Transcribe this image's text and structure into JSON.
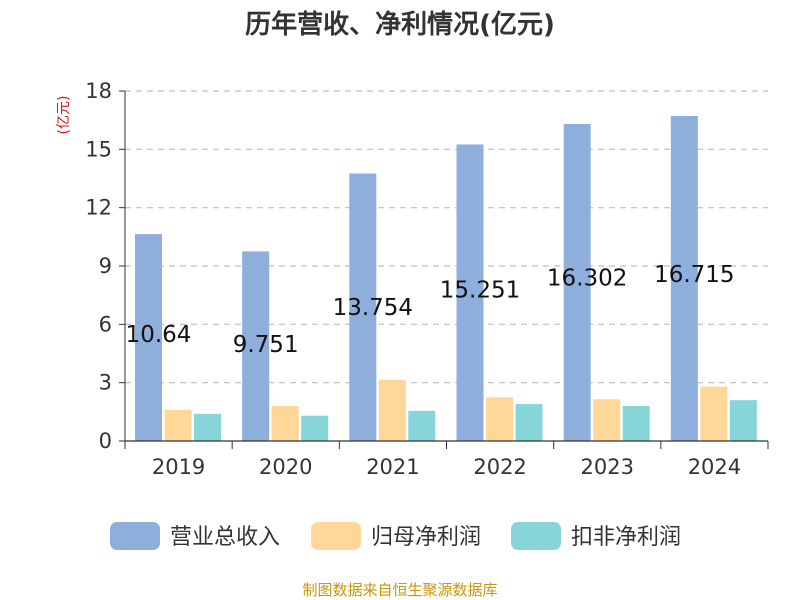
{
  "chart_data": {
    "type": "bar",
    "title": "历年营收、净利情况(亿元)",
    "unit_label": "(亿元)",
    "categories": [
      "2019",
      "2020",
      "2021",
      "2022",
      "2023",
      "2024"
    ],
    "ylim": [
      0,
      18
    ],
    "yticks": [
      0,
      3,
      6,
      9,
      12,
      15,
      18
    ],
    "grid": true,
    "legend_position": "bottom",
    "series": [
      {
        "name": "营业总收入",
        "color": "#8eaedb",
        "values": [
          10.64,
          9.751,
          13.754,
          15.251,
          16.302,
          16.715
        ],
        "data_labels": [
          "10.64",
          "9.751",
          "13.754",
          "15.251",
          "16.302",
          "16.715"
        ]
      },
      {
        "name": "归母净利润",
        "color": "#ffd799",
        "values": [
          1.6,
          1.8,
          3.15,
          2.25,
          2.15,
          2.8
        ]
      },
      {
        "name": "扣非净利润",
        "color": "#86d5d9",
        "values": [
          1.4,
          1.3,
          1.55,
          1.9,
          1.8,
          2.1
        ]
      }
    ]
  },
  "source_text": "制图数据来自恒生聚源数据库"
}
